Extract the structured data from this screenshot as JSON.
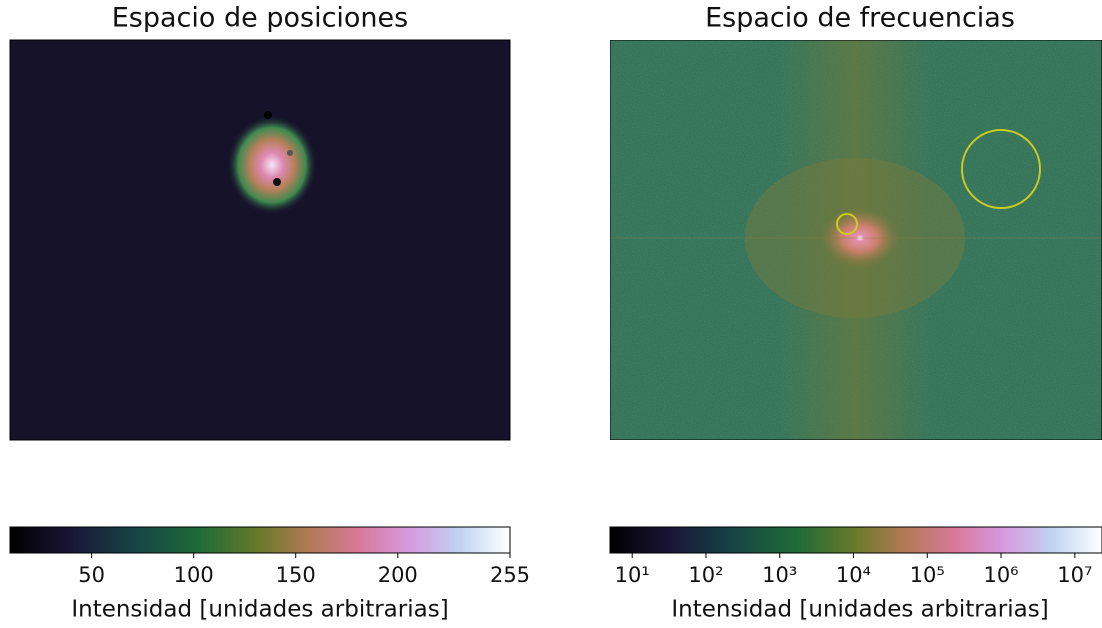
{
  "chart_data": [
    {
      "type": "image",
      "title": "Espacio de posiciones",
      "colorbar": {
        "label": "Intensidad [unidades arbitrarias]",
        "scale": "linear",
        "lim": [
          10,
          255
        ],
        "ticks": [
          50,
          100,
          150,
          200,
          255
        ]
      }
    },
    {
      "type": "image",
      "title": "Espacio de frecuencias",
      "colorbar": {
        "label": "Intensidad [unidades arbitrarias]",
        "scale": "log",
        "lim": [
          5,
          30000000
        ],
        "ticks": [
          {
            "value": 10,
            "label": "10¹"
          },
          {
            "value": 100,
            "label": "10²"
          },
          {
            "value": 1000,
            "label": "10³"
          },
          {
            "value": 10000,
            "label": "10⁴"
          },
          {
            "value": 100000,
            "label": "10⁵"
          },
          {
            "value": 1000000,
            "label": "10⁶"
          },
          {
            "value": 10000000,
            "label": "10⁷"
          }
        ]
      }
    }
  ]
}
